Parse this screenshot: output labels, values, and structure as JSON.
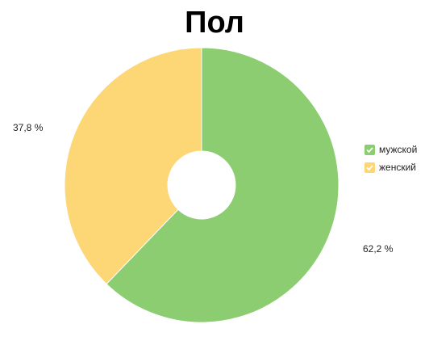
{
  "chart_data": {
    "type": "pie",
    "title": "Пол",
    "donut": true,
    "slices": [
      {
        "name": "мужской",
        "value": 62.2,
        "label": "62,2 %",
        "color": "#8bcd70"
      },
      {
        "name": "женский",
        "value": 37.8,
        "label": "37,8 %",
        "color": "#fdd676"
      }
    ],
    "legend_position": "right"
  },
  "legend": {
    "items": [
      {
        "label": "мужской",
        "color": "#8bcd70",
        "checked": true
      },
      {
        "label": "женский",
        "color": "#fdd676",
        "checked": true
      }
    ]
  }
}
